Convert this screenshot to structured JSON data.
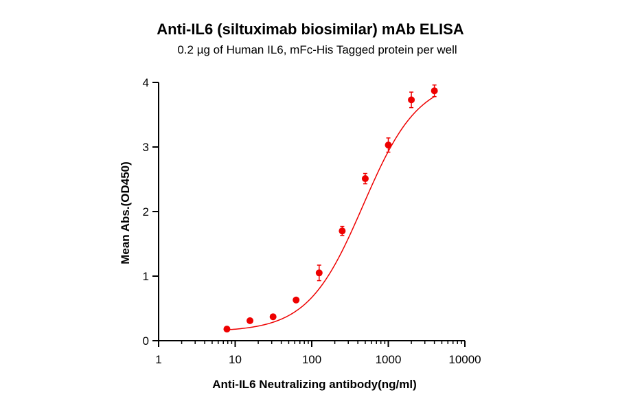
{
  "chart_data": {
    "type": "scatter",
    "title": "Anti-IL6 (siltuximab biosimilar) mAb ELISA",
    "subtitle": "0.2 µg of Human IL6, mFc-His Tagged protein per well",
    "xlabel": "Anti-IL6 Neutralizing antibody(ng/ml)",
    "ylabel": "Mean Abs.(OD450)",
    "x_scale": "log",
    "xlim": [
      1,
      10000
    ],
    "ylim": [
      0,
      4
    ],
    "x_ticks": [
      1,
      10,
      100,
      1000,
      10000
    ],
    "x_tick_labels": [
      "1",
      "10",
      "100",
      "1000",
      "10000"
    ],
    "y_ticks": [
      0,
      1,
      2,
      3,
      4
    ],
    "y_tick_labels": [
      "0",
      "1",
      "2",
      "3",
      "4"
    ],
    "grid": false,
    "color": "#ee0000",
    "series": [
      {
        "x": [
          7.8,
          15.6,
          31.25,
          62.5,
          125,
          250,
          500,
          1000,
          2000,
          4000
        ],
        "y": [
          0.18,
          0.31,
          0.37,
          0.63,
          1.05,
          1.7,
          2.51,
          3.03,
          3.73,
          3.87
        ],
        "error": [
          0.02,
          0.03,
          0.03,
          0.03,
          0.12,
          0.07,
          0.08,
          0.11,
          0.12,
          0.09
        ]
      }
    ],
    "fit": {
      "type": "4PL",
      "bottom": 0.14,
      "top": 4.06,
      "ec50": 470,
      "hill": 1.2
    }
  }
}
